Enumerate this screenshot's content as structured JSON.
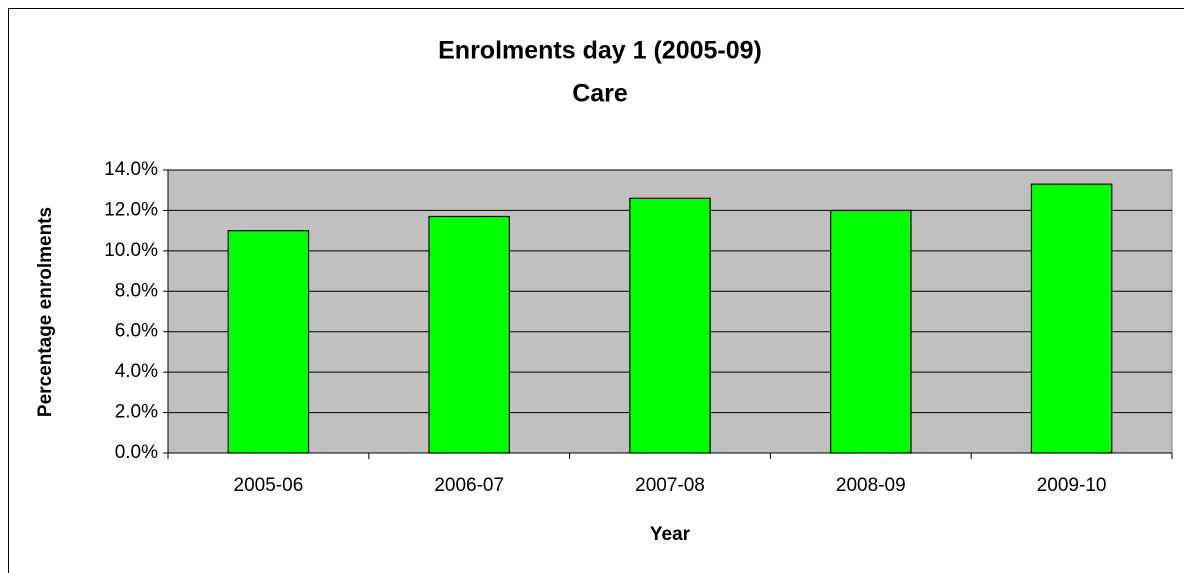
{
  "chart_data": {
    "type": "bar",
    "title": "Enrolments day 1 (2005-09)",
    "subtitle": "Care",
    "x_label": "Year",
    "y_label": "Percentage enrolments",
    "categories": [
      "2005-06",
      "2006-07",
      "2007-08",
      "2008-09",
      "2009-10"
    ],
    "values": [
      11.0,
      11.7,
      12.6,
      12.0,
      13.3
    ],
    "color": "#00ff00",
    "ylim": [
      0,
      14
    ],
    "yticks": [
      {
        "value": 0,
        "label": "0.0%"
      },
      {
        "value": 2,
        "label": "2.0%"
      },
      {
        "value": 4,
        "label": "4.0%"
      },
      {
        "value": 6,
        "label": "6.0%"
      },
      {
        "value": 8,
        "label": "8.0%"
      },
      {
        "value": 10,
        "label": "10.0%"
      },
      {
        "value": 12,
        "label": "12.0%"
      },
      {
        "value": 14,
        "label": "14.0%"
      }
    ],
    "grid": true
  }
}
